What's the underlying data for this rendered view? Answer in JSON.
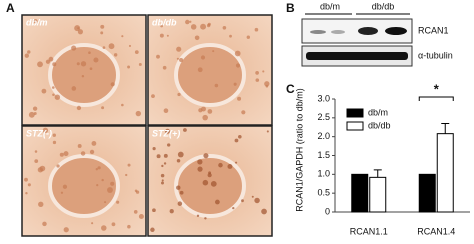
{
  "panel_labels": [
    "A",
    "B",
    "C"
  ],
  "micrographs": [
    "db/m",
    "db/db",
    "STZ(-)",
    "STZ(+)"
  ],
  "blot": {
    "groups": [
      "db/m",
      "db/db"
    ],
    "rows": [
      "RCAN1",
      "α-tubulin"
    ]
  },
  "chart_data": {
    "type": "bar",
    "ylabel": "RCAN1/GAPDH (ratio to db/m)",
    "categories": [
      "RCAN1.1",
      "RCAN1.4"
    ],
    "series": [
      {
        "name": "db/m",
        "color": "#000000",
        "values": [
          1,
          1
        ]
      },
      {
        "name": "db/db",
        "color": "#ffffff",
        "values": [
          0.92,
          2.08
        ],
        "errors": [
          0.2,
          0.27
        ]
      }
    ],
    "ylim": [
      0,
      3
    ],
    "yticks": [
      0,
      {
        "value": 0.5,
        "label": "0.5"
      },
      {
        "value": 1,
        "label": "1.0"
      },
      {
        "value": 1.5,
        "label": "1.5"
      },
      {
        "value": 2,
        "label": "2.0"
      },
      {
        "value": 2.5,
        "label": "2.5"
      },
      {
        "value": 3,
        "label": "3.0"
      }
    ],
    "legend": "upper left",
    "annotation": "*"
  }
}
